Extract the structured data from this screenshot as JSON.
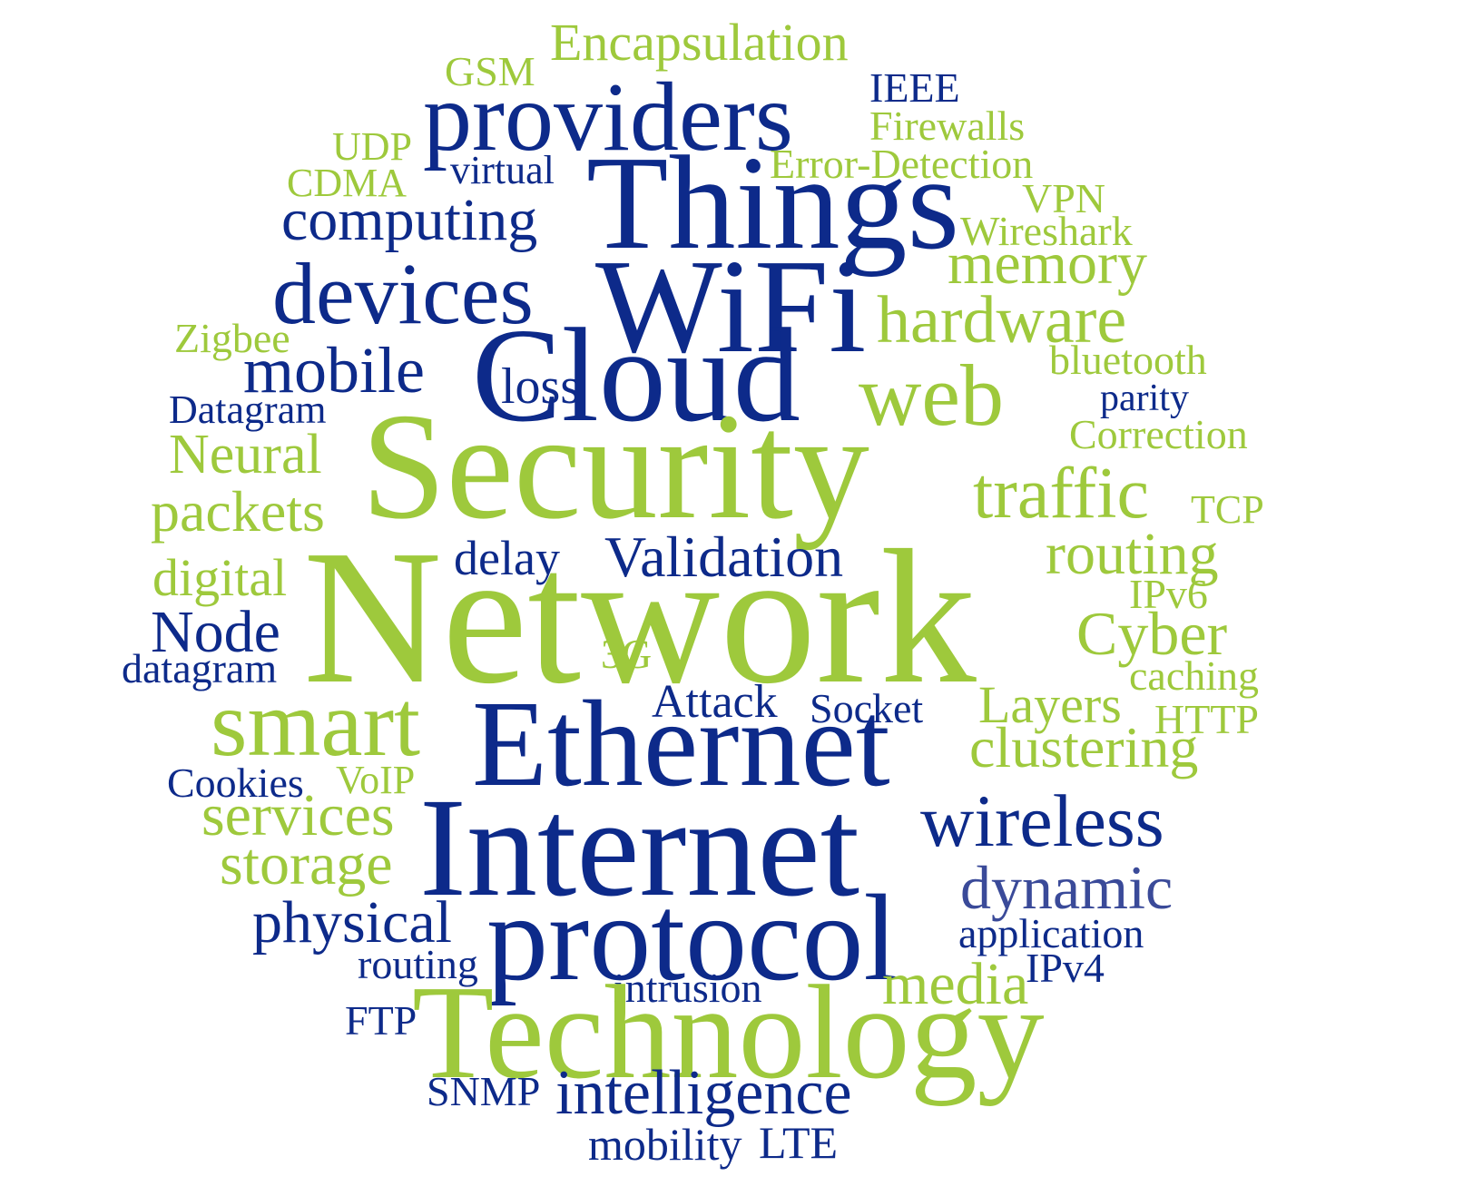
{
  "colors": {
    "navy": "#0d2a8a",
    "slate": "#3a4a99",
    "green": "#9ec93c"
  },
  "words": [
    {
      "text": "Encapsulation",
      "color": "green"
    },
    {
      "text": "GSM",
      "color": "green"
    },
    {
      "text": "IEEE",
      "color": "navy"
    },
    {
      "text": "providers",
      "color": "navy"
    },
    {
      "text": "Firewalls",
      "color": "green"
    },
    {
      "text": "UDP",
      "color": "green"
    },
    {
      "text": "virtual",
      "color": "navy"
    },
    {
      "text": "Error-Detection",
      "color": "green"
    },
    {
      "text": "CDMA",
      "color": "green"
    },
    {
      "text": "Things",
      "color": "navy"
    },
    {
      "text": "VPN",
      "color": "green"
    },
    {
      "text": "computing",
      "color": "navy"
    },
    {
      "text": "Wireshark",
      "color": "green"
    },
    {
      "text": "memory",
      "color": "green"
    },
    {
      "text": "devices",
      "color": "navy"
    },
    {
      "text": "WiFi",
      "color": "navy"
    },
    {
      "text": "hardware",
      "color": "green"
    },
    {
      "text": "Zigbee",
      "color": "green"
    },
    {
      "text": "Cloud",
      "color": "navy"
    },
    {
      "text": "mobile",
      "color": "navy"
    },
    {
      "text": "bluetooth",
      "color": "green"
    },
    {
      "text": "loss",
      "color": "navy"
    },
    {
      "text": "web",
      "color": "green"
    },
    {
      "text": "parity",
      "color": "navy"
    },
    {
      "text": "Datagram",
      "color": "navy"
    },
    {
      "text": "Correction",
      "color": "green"
    },
    {
      "text": "Neural",
      "color": "green"
    },
    {
      "text": "Security",
      "color": "green"
    },
    {
      "text": "traffic",
      "color": "green"
    },
    {
      "text": "packets",
      "color": "green"
    },
    {
      "text": "TCP",
      "color": "green"
    },
    {
      "text": "delay",
      "color": "navy"
    },
    {
      "text": "Validation",
      "color": "navy"
    },
    {
      "text": "routing",
      "color": "green"
    },
    {
      "text": "digital",
      "color": "green"
    },
    {
      "text": "Network",
      "color": "green"
    },
    {
      "text": "IPv6",
      "color": "green"
    },
    {
      "text": "Node",
      "color": "navy"
    },
    {
      "text": "Cyber",
      "color": "green"
    },
    {
      "text": "3G",
      "color": "green"
    },
    {
      "text": "datagram",
      "color": "navy"
    },
    {
      "text": "caching",
      "color": "green"
    },
    {
      "text": "Attack",
      "color": "navy"
    },
    {
      "text": "Socket",
      "color": "navy"
    },
    {
      "text": "Layers",
      "color": "green"
    },
    {
      "text": "smart",
      "color": "green"
    },
    {
      "text": "HTTP",
      "color": "green"
    },
    {
      "text": "Ethernet",
      "color": "navy"
    },
    {
      "text": "clustering",
      "color": "green"
    },
    {
      "text": "Cookies",
      "color": "navy"
    },
    {
      "text": "VoIP",
      "color": "green"
    },
    {
      "text": "services",
      "color": "green"
    },
    {
      "text": "wireless",
      "color": "navy"
    },
    {
      "text": "Internet",
      "color": "navy"
    },
    {
      "text": "storage",
      "color": "green"
    },
    {
      "text": "dynamic",
      "color": "slate"
    },
    {
      "text": "physical",
      "color": "navy"
    },
    {
      "text": "protocol",
      "color": "navy"
    },
    {
      "text": "application",
      "color": "navy"
    },
    {
      "text": "routing",
      "color": "navy"
    },
    {
      "text": "IPv4",
      "color": "navy"
    },
    {
      "text": "media",
      "color": "green"
    },
    {
      "text": "intrusion",
      "color": "navy"
    },
    {
      "text": "FTP",
      "color": "navy"
    },
    {
      "text": "Technology",
      "color": "green"
    },
    {
      "text": "SNMP",
      "color": "navy"
    },
    {
      "text": "intelligence",
      "color": "navy"
    },
    {
      "text": "mobility",
      "color": "navy"
    },
    {
      "text": "LTE",
      "color": "navy"
    }
  ]
}
